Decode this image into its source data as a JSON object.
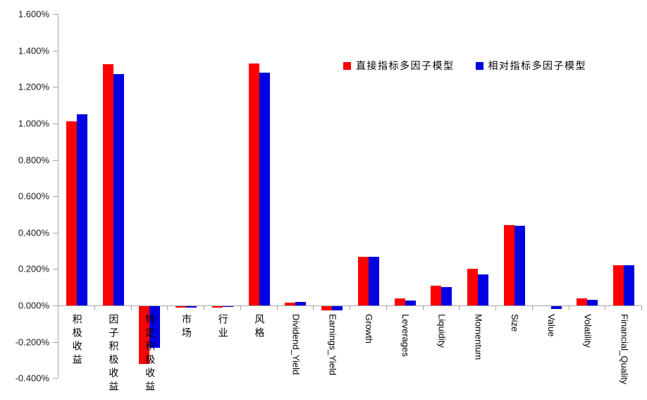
{
  "chart_data": {
    "type": "bar",
    "title": "",
    "xlabel": "",
    "ylabel": "",
    "grid": false,
    "legend_position": "top-right-inside",
    "ylim": [
      -0.4,
      1.6
    ],
    "ytick_step": 0.2,
    "y_tick_labels": [
      "1.600%",
      "1.400%",
      "1.200%",
      "1.000%",
      "0.800%",
      "0.600%",
      "0.400%",
      "0.200%",
      "0.000%",
      "-0.200%",
      "-0.400%"
    ],
    "value_unit": "percent",
    "categories": [
      "积极收益",
      "因子积极收益",
      "特定积极收益",
      "市场",
      "行业",
      "风格",
      "Dividend_Yield",
      "Earnings_Yield",
      "Growth",
      "Leverages",
      "Liquidity",
      "Momentum",
      "Size",
      "Value",
      "Volatility",
      "Financial_Quality"
    ],
    "series": [
      {
        "name": "直接指标多因子模型",
        "color": "#fe0000",
        "values": [
          1.01,
          1.325,
          -0.318,
          -0.008,
          -0.006,
          1.329,
          0.014,
          -0.022,
          0.268,
          0.037,
          0.108,
          0.203,
          0.442,
          0.0,
          0.04,
          0.22
        ]
      },
      {
        "name": "相对指标多因子模型",
        "color": "#0000e0",
        "values": [
          1.05,
          1.271,
          -0.228,
          -0.008,
          -0.002,
          1.278,
          0.018,
          -0.023,
          0.268,
          0.028,
          0.1,
          0.172,
          0.438,
          -0.014,
          0.031,
          0.221
        ]
      }
    ],
    "colors": {
      "axis": "#a6a6a6",
      "tick_text": "#1a1a1a",
      "label_text": "#000000"
    }
  }
}
